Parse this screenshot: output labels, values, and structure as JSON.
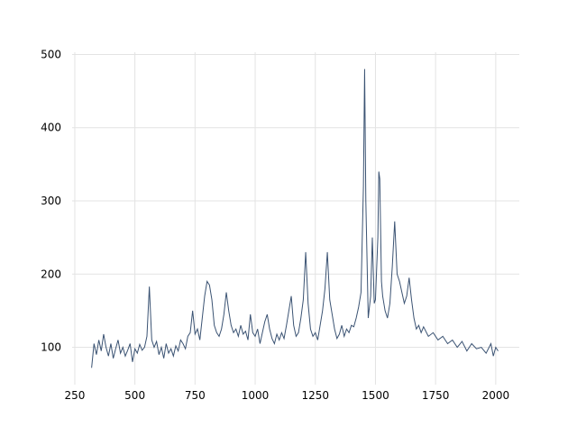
{
  "chart_data": {
    "type": "line",
    "color": "#3b5373",
    "grid": true,
    "xlim": [
      239,
      2098
    ],
    "ylim": [
      49,
      503
    ],
    "xticks": [
      250,
      500,
      750,
      1000,
      1250,
      1500,
      1750,
      2000
    ],
    "yticks": [
      100,
      200,
      300,
      400,
      500
    ],
    "x": [
      320,
      330,
      340,
      350,
      360,
      370,
      380,
      390,
      400,
      410,
      420,
      430,
      440,
      450,
      460,
      470,
      480,
      490,
      500,
      510,
      520,
      530,
      540,
      550,
      560,
      570,
      580,
      590,
      600,
      610,
      620,
      630,
      640,
      650,
      660,
      670,
      680,
      690,
      700,
      710,
      720,
      730,
      740,
      750,
      760,
      770,
      780,
      790,
      800,
      810,
      820,
      830,
      840,
      850,
      860,
      870,
      880,
      890,
      900,
      910,
      920,
      930,
      940,
      950,
      960,
      970,
      980,
      990,
      1000,
      1010,
      1020,
      1030,
      1040,
      1050,
      1060,
      1070,
      1080,
      1090,
      1100,
      1110,
      1120,
      1130,
      1140,
      1150,
      1160,
      1170,
      1180,
      1190,
      1200,
      1210,
      1220,
      1230,
      1240,
      1250,
      1260,
      1270,
      1280,
      1290,
      1300,
      1310,
      1320,
      1330,
      1340,
      1350,
      1360,
      1370,
      1380,
      1390,
      1400,
      1410,
      1420,
      1430,
      1440,
      1450,
      1455,
      1460,
      1470,
      1480,
      1487,
      1495,
      1500,
      1510,
      1514,
      1518,
      1525,
      1530,
      1540,
      1550,
      1560,
      1570,
      1580,
      1590,
      1600,
      1610,
      1620,
      1630,
      1640,
      1650,
      1660,
      1670,
      1680,
      1690,
      1700,
      1720,
      1740,
      1760,
      1780,
      1800,
      1820,
      1840,
      1860,
      1880,
      1900,
      1920,
      1940,
      1960,
      1980,
      1990,
      2000,
      2010
    ],
    "values": [
      72,
      105,
      90,
      110,
      95,
      118,
      100,
      88,
      105,
      85,
      98,
      110,
      92,
      100,
      88,
      96,
      105,
      80,
      98,
      92,
      104,
      96,
      100,
      115,
      183,
      110,
      100,
      108,
      90,
      100,
      85,
      105,
      92,
      98,
      88,
      102,
      95,
      110,
      105,
      98,
      115,
      120,
      150,
      118,
      125,
      110,
      140,
      170,
      190,
      185,
      165,
      130,
      120,
      115,
      125,
      145,
      175,
      150,
      130,
      120,
      125,
      115,
      130,
      118,
      122,
      110,
      145,
      120,
      115,
      125,
      105,
      120,
      135,
      145,
      125,
      112,
      105,
      118,
      110,
      120,
      112,
      130,
      150,
      170,
      130,
      115,
      120,
      140,
      165,
      230,
      160,
      125,
      115,
      120,
      110,
      130,
      150,
      180,
      230,
      165,
      145,
      125,
      112,
      118,
      130,
      115,
      125,
      120,
      130,
      128,
      140,
      155,
      175,
      320,
      480,
      300,
      140,
      170,
      250,
      160,
      165,
      250,
      340,
      330,
      190,
      170,
      150,
      140,
      160,
      210,
      272,
      200,
      190,
      175,
      160,
      170,
      195,
      165,
      140,
      125,
      130,
      120,
      128,
      115,
      120,
      110,
      115,
      105,
      110,
      100,
      108,
      95,
      105,
      98,
      100,
      92,
      105,
      88,
      100,
      95
    ]
  }
}
